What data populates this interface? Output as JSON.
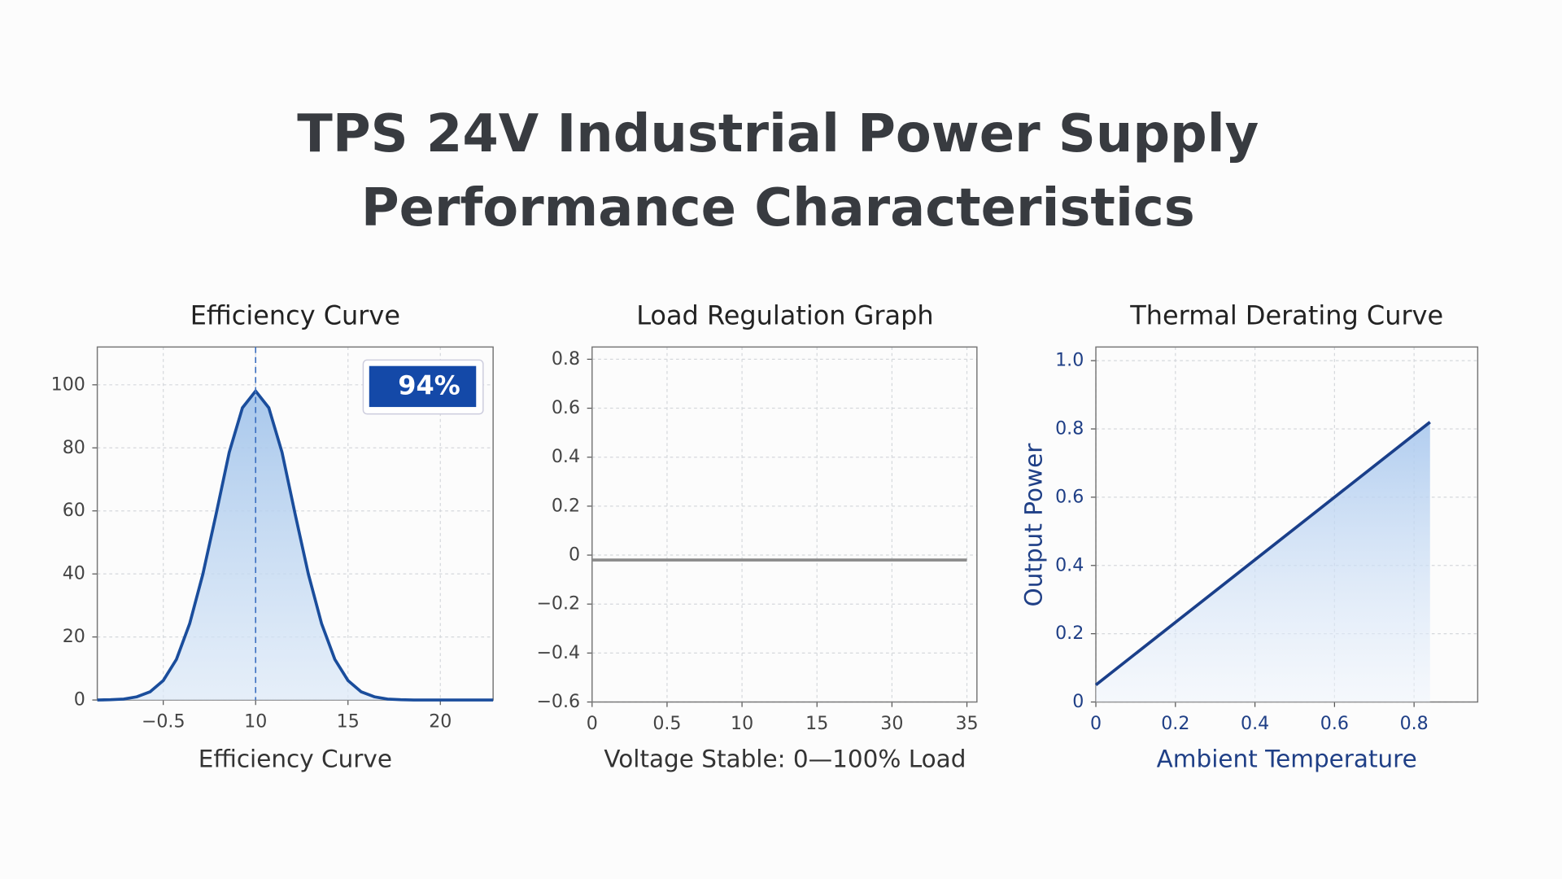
{
  "header": {
    "title": [
      "TPS 24V Industrial Power Supply",
      "Performance Characteristics"
    ]
  },
  "chart_data": [
    {
      "type": "area",
      "title": "Efficiency Curve",
      "x_label": "Efficiency Curve",
      "color": "#1a4d9c",
      "categories": [
        null,
        null,
        null,
        null,
        null,
        "−0.5",
        null,
        null,
        null,
        null,
        null,
        null,
        "10",
        null,
        null,
        null,
        null,
        null,
        null,
        "15",
        null,
        null,
        null,
        null,
        null,
        null,
        "20",
        null,
        null,
        null,
        null
      ],
      "values": [
        0,
        0.1,
        0.3,
        1.0,
        2.6,
        6.2,
        12.9,
        24.2,
        39.9,
        58.9,
        78.6,
        92.7,
        98,
        92.7,
        78.6,
        58.9,
        39.9,
        24.2,
        12.9,
        6.2,
        2.6,
        1.0,
        0.3,
        0.1,
        0,
        0,
        0,
        0,
        0,
        0,
        0
      ],
      "ylim": [
        0,
        112
      ],
      "yticks": [
        0,
        20,
        40,
        60,
        80,
        100
      ],
      "grid": true,
      "annotation": "94%"
    },
    {
      "type": "line",
      "title": "Load Regulation Graph",
      "x_label": "Voltage Stable: 0—100% Load",
      "color": "#8a8a8a",
      "categories": [
        "0",
        "0.5",
        "10",
        "15",
        "30",
        "35"
      ],
      "values": [
        -0.02,
        -0.02,
        -0.02,
        -0.02,
        -0.02,
        -0.02
      ],
      "ylim": [
        -0.6,
        0.85
      ],
      "yticks": [
        {
          "value": -0.6,
          "label": "−0.6"
        },
        {
          "value": -0.4,
          "label": "−0.4"
        },
        {
          "value": -0.2,
          "label": "−0.2"
        },
        0,
        0.2,
        0.4,
        0.6,
        0.8
      ],
      "grid": true
    },
    {
      "type": "area",
      "title": "Thermal Derating Curve",
      "x_label": "Ambient Temperature",
      "y_label": "Output Power",
      "color": "#1a3f8a",
      "x": [
        0,
        0.84
      ],
      "values": [
        0.05,
        0.82
      ],
      "xlim": [
        0,
        0.96
      ],
      "xticks": [
        0,
        0.2,
        0.4,
        0.6,
        0.8
      ],
      "ylim": [
        0,
        1.04
      ],
      "yticks": [
        0,
        0.2,
        0.4,
        0.6,
        0.8,
        {
          "value": 1,
          "label": "1.0"
        }
      ],
      "grid": true
    }
  ]
}
